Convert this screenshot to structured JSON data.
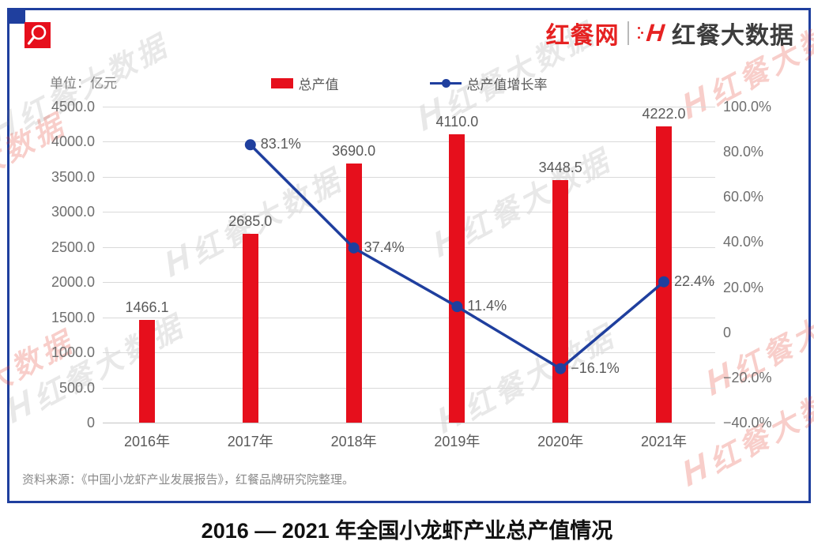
{
  "header": {
    "site_logo": "红餐网",
    "divider": "|",
    "brand_mark": "H",
    "brand_logo": "红餐大数据",
    "corner_icon": "search-icon"
  },
  "chart": {
    "unit_label": "单位：亿元",
    "legend": {
      "bar_label": "总产值",
      "line_label": "总产值增长率"
    }
  },
  "chart_data": {
    "type": "bar+line",
    "title": "2016 — 2021 年全国小龙虾产业总产值情况",
    "categories": [
      "2016年",
      "2017年",
      "2018年",
      "2019年",
      "2020年",
      "2021年"
    ],
    "series": [
      {
        "name": "总产值",
        "type": "bar",
        "unit": "亿元",
        "axis": "left",
        "color": "#e60f1c",
        "values": [
          1466.1,
          2685.0,
          3690.0,
          4110.0,
          3448.5,
          4222.0
        ],
        "value_labels": [
          "1466.1",
          "2685.0",
          "3690.0",
          "4110.0",
          "3448.5",
          "4222.0"
        ]
      },
      {
        "name": "总产值增长率",
        "type": "line",
        "unit": "%",
        "axis": "right",
        "color": "#1f3f9e",
        "values": [
          null,
          83.1,
          37.4,
          11.4,
          -16.1,
          22.4
        ],
        "value_labels": [
          null,
          "83.1%",
          "37.4%",
          "11.4%",
          "−16.1%",
          "22.4%"
        ]
      }
    ],
    "left_axis": {
      "min": 0,
      "max": 4500,
      "ticks": [
        "4500.0",
        "4000.0",
        "3500.0",
        "3000.0",
        "2500.0",
        "2000.0",
        "1500.0",
        "1000.0",
        "500.0",
        "0"
      ]
    },
    "right_axis": {
      "min": -40,
      "max": 100,
      "ticks": [
        "100.0%",
        "80.0%",
        "60.0%",
        "40.0%",
        "20.0%",
        "0",
        "−20.0%",
        "−40.0%"
      ]
    },
    "grid": true,
    "legend_position": "top"
  },
  "source_note": "资料来源：《中国小龙虾产业发展报告》，红餐品牌研究院整理。",
  "caption_title": "2016 — 2021 年全国小龙虾产业总产值情况",
  "watermark": {
    "mark": "H",
    "text": "红餐大数据"
  },
  "colors": {
    "bar_red": "#e60f1c",
    "line_blue": "#1f3f9e",
    "border_blue": "#1f3f9e"
  }
}
